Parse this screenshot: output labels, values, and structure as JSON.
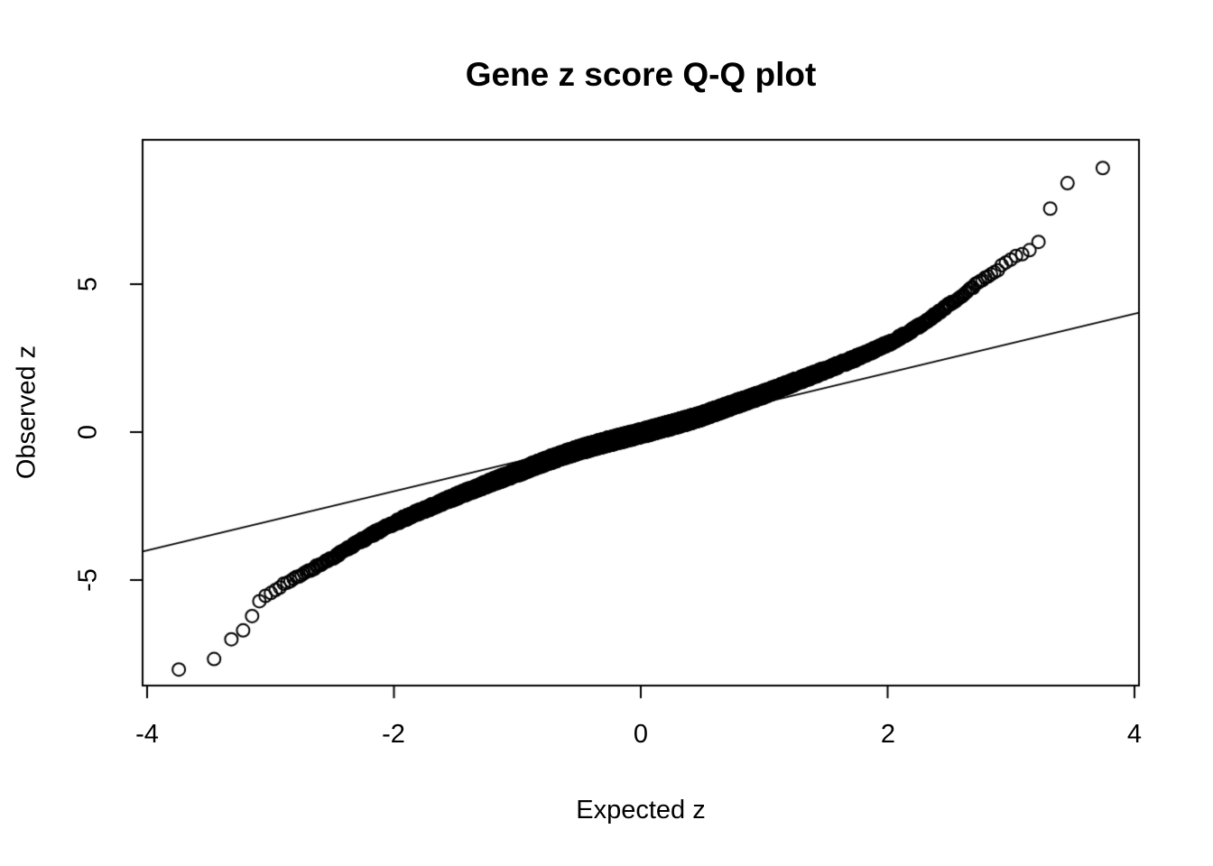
{
  "chart_data": {
    "type": "scatter",
    "title": "Gene z score Q-Q plot",
    "xlabel": "Expected z",
    "ylabel": "Observed z",
    "point_style": "open-circle",
    "point_color": "#000000",
    "background_color": "#ffffff",
    "grid": false,
    "legend": false,
    "x_ticks": [
      -4,
      -2,
      0,
      2,
      4
    ],
    "x_tick_labels": [
      "-4",
      "-2",
      "0",
      "2",
      "4"
    ],
    "y_ticks": [
      -5,
      0,
      5
    ],
    "y_tick_labels": [
      "-5",
      "0",
      "5"
    ],
    "xlim": [
      -4.04,
      4.04
    ],
    "ylim": [
      -8.57,
      9.88
    ],
    "n_points": 5500,
    "reference_line": {
      "slope": 1,
      "intercept": 0,
      "description": "identity line y = x"
    },
    "qq_curve": [
      [
        -3.74,
        -8.02
      ],
      [
        -3.56,
        -7.88
      ],
      [
        -3.46,
        -7.7
      ],
      [
        -3.39,
        -7.2
      ],
      [
        -3.34,
        -7.05
      ],
      [
        -3.29,
        -6.97
      ],
      [
        -3.25,
        -6.82
      ],
      [
        -3.21,
        -6.68
      ],
      [
        -3.18,
        -6.52
      ],
      [
        -3.16,
        -6.3
      ],
      [
        -3.13,
        -6.07
      ],
      [
        -3.11,
        -5.8
      ],
      [
        -3.05,
        -5.55
      ],
      [
        -2.97,
        -5.35
      ],
      [
        -2.9,
        -5.15
      ],
      [
        -2.8,
        -4.95
      ],
      [
        -2.7,
        -4.72
      ],
      [
        -2.6,
        -4.48
      ],
      [
        -2.5,
        -4.25
      ],
      [
        -2.3,
        -3.75
      ],
      [
        -2.05,
        -3.17
      ],
      [
        -1.8,
        -2.7
      ],
      [
        -1.5,
        -2.18
      ],
      [
        -1.2,
        -1.67
      ],
      [
        -1.0,
        -1.36
      ],
      [
        -0.7,
        -0.88
      ],
      [
        -0.5,
        -0.6
      ],
      [
        -0.3,
        -0.36
      ],
      [
        0.0,
        -0.04
      ],
      [
        0.3,
        0.3
      ],
      [
        0.5,
        0.55
      ],
      [
        0.7,
        0.85
      ],
      [
        1.02,
        1.32
      ],
      [
        1.25,
        1.7
      ],
      [
        1.54,
        2.16
      ],
      [
        1.8,
        2.6
      ],
      [
        2.05,
        3.08
      ],
      [
        2.3,
        3.7
      ],
      [
        2.56,
        4.5
      ],
      [
        2.72,
        5.0
      ],
      [
        2.85,
        5.35
      ],
      [
        2.95,
        5.7
      ],
      [
        3.02,
        5.9
      ],
      [
        3.1,
        6.05
      ],
      [
        3.16,
        6.2
      ],
      [
        3.22,
        6.4
      ],
      [
        3.27,
        6.74
      ],
      [
        3.32,
        7.59
      ],
      [
        3.38,
        7.99
      ],
      [
        3.46,
        8.41
      ],
      [
        3.56,
        8.69
      ],
      [
        3.74,
        8.93
      ]
    ],
    "tail_points_high": [
      [
        3.27,
        6.74
      ],
      [
        3.32,
        7.59
      ],
      [
        3.38,
        7.99
      ],
      [
        3.46,
        8.41
      ],
      [
        3.56,
        8.69
      ],
      [
        3.74,
        8.93
      ]
    ],
    "tail_points_low": [
      [
        -3.74,
        -8.02
      ],
      [
        -3.56,
        -7.9
      ],
      [
        -3.46,
        -7.71
      ],
      [
        -3.39,
        -7.2
      ],
      [
        -3.34,
        -7.04
      ],
      [
        -3.29,
        -6.98
      ],
      [
        -3.25,
        -6.83
      ],
      [
        -3.2,
        -6.68
      ],
      [
        -3.18,
        -6.52
      ],
      [
        -3.16,
        -6.28
      ],
      [
        -3.12,
        -6.07
      ],
      [
        -3.11,
        -5.76
      ]
    ]
  }
}
